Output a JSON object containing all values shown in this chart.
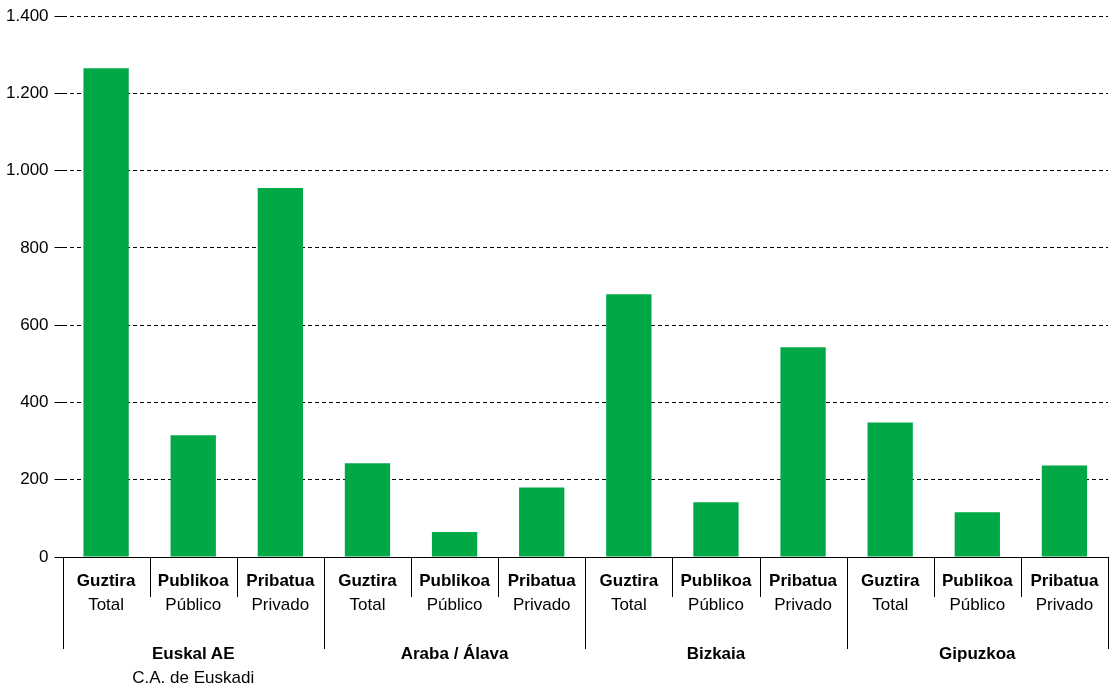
{
  "chart_data": {
    "type": "bar",
    "categories": [
      "Guztira\nTotal",
      "Publikoa\nPúblico",
      "Pribatua\nPrivado",
      "Guztira\nTotal",
      "Publikoa\nPúblico",
      "Pribatua\nPrivado",
      "Guztira\nTotal",
      "Publikoa\nPúblico",
      "Pribatua\nPrivado",
      "Guztira\nTotal",
      "Publikoa\nPúblico",
      "Pribatua\nPrivado"
    ],
    "values": [
      1265,
      315,
      955,
      243,
      65,
      180,
      680,
      142,
      543,
      348,
      116,
      237
    ],
    "color": "#00a846",
    "ylim": [
      0,
      1400
    ],
    "yticks": [
      0,
      200,
      400,
      600,
      800,
      {
        "value": 1000,
        "label": "1.000"
      },
      {
        "value": 1200,
        "label": "1.200"
      },
      {
        "value": 1400,
        "label": "1.400"
      }
    ],
    "grid": "y",
    "annotations": [
      "Euskal AE\nC.A. de Euskadi",
      "Araba / Álava",
      "Bizkaia",
      "Gipuzkoa"
    ]
  }
}
